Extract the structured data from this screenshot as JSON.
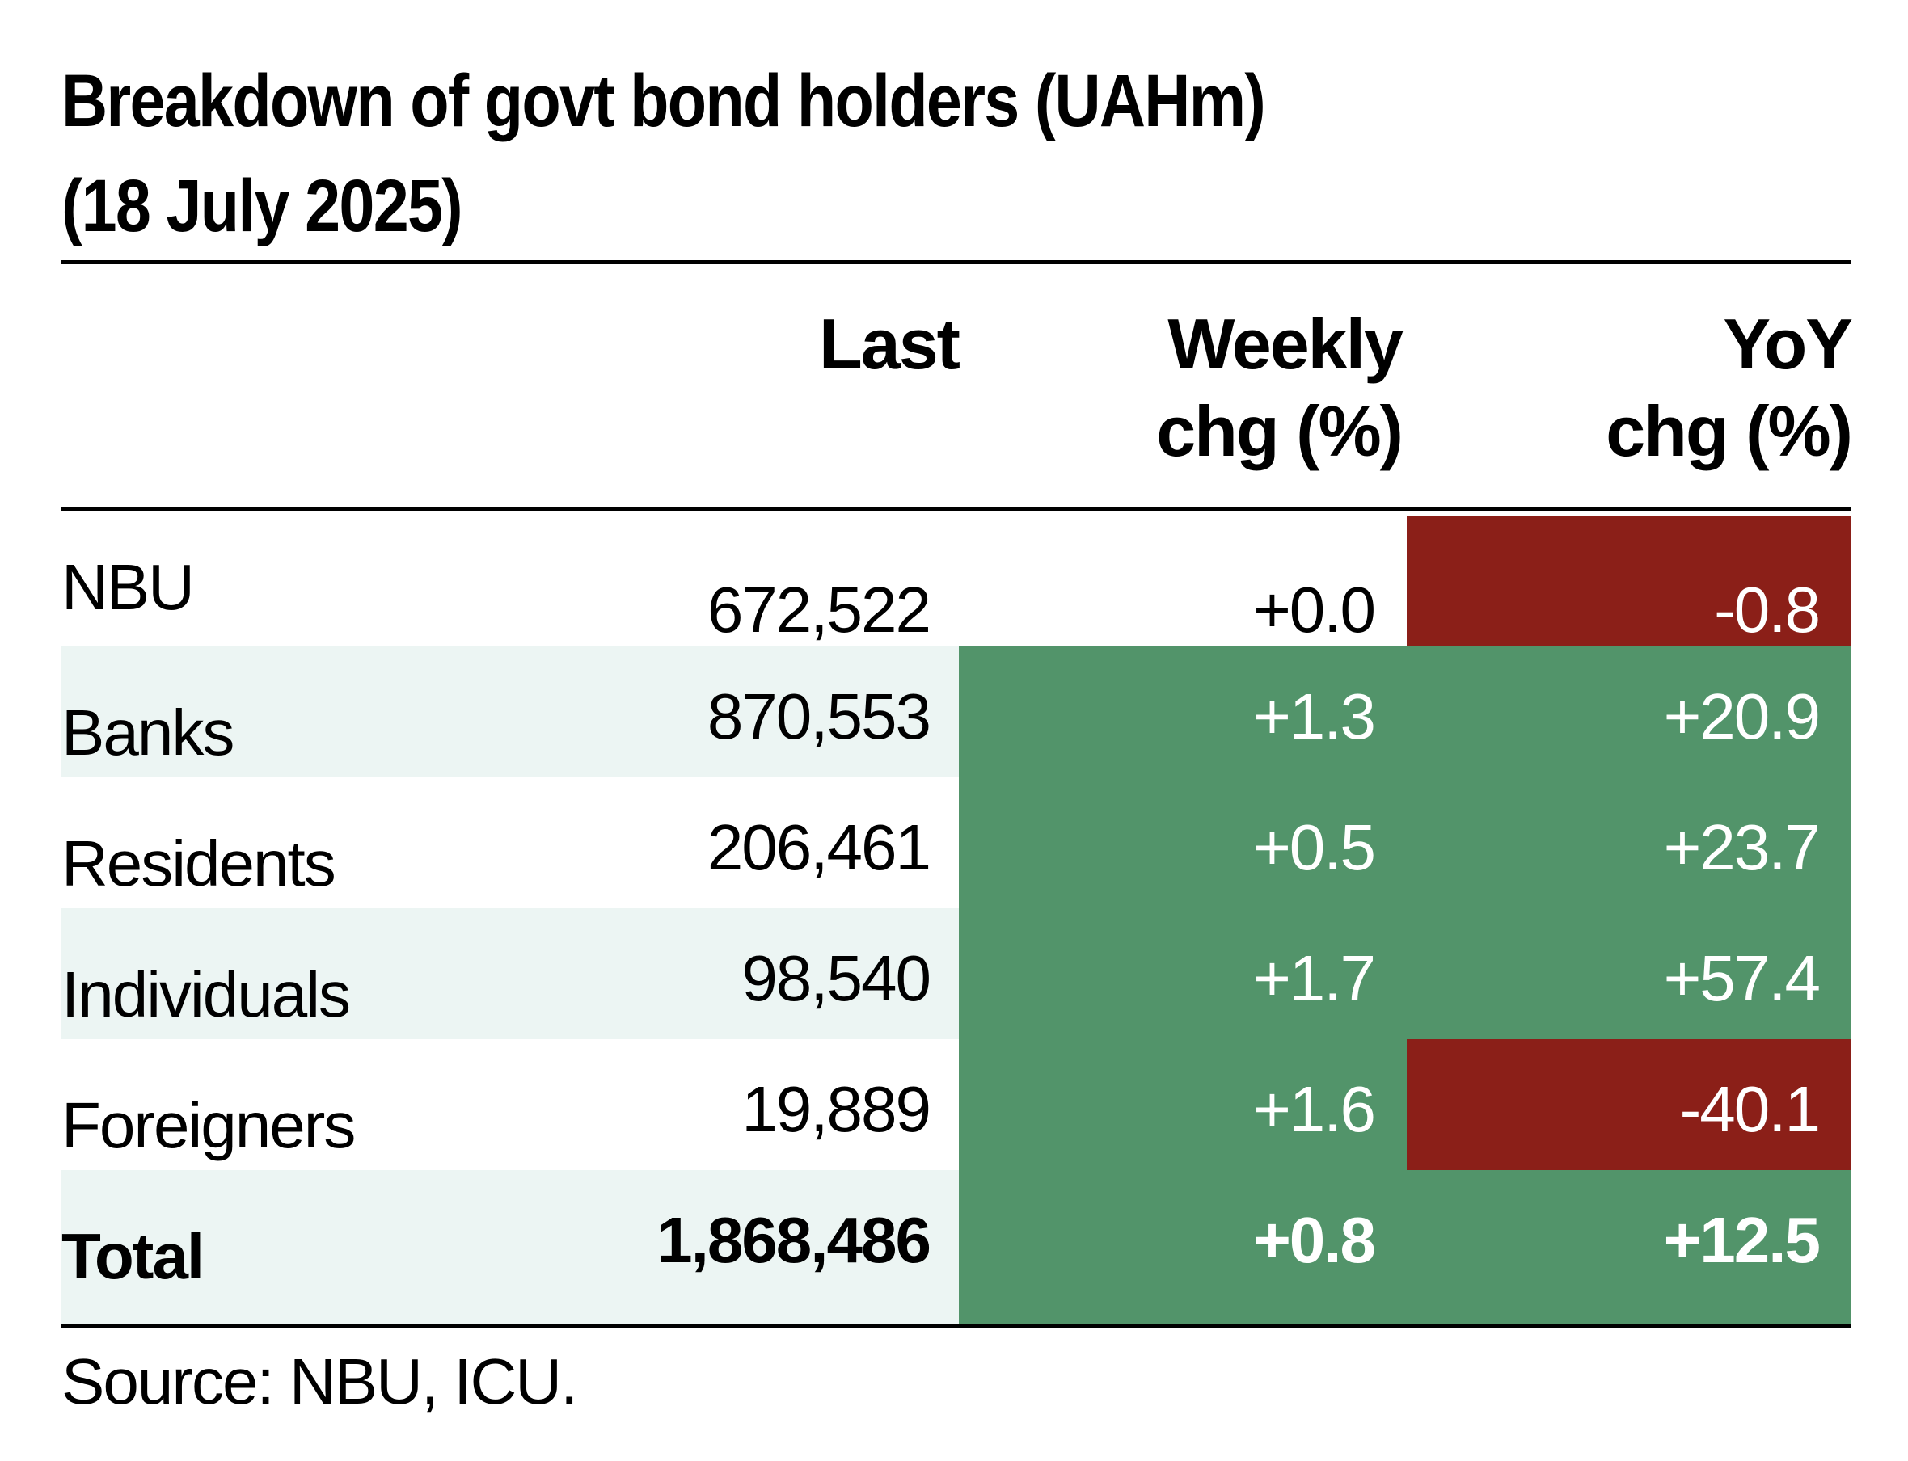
{
  "title": {
    "line1": "Breakdown of govt bond holders (UAHm)",
    "line2": "(18 July 2025)"
  },
  "columns": {
    "last": "Last",
    "weekly_line1": "Weekly",
    "weekly_line2": "chg (%)",
    "yoy_line1": "YoY",
    "yoy_line2": "chg (%)"
  },
  "rows": [
    {
      "label": "NBU",
      "last": "672,522",
      "weekly": "+0.0",
      "yoy": "-0.8"
    },
    {
      "label": "Banks",
      "last": "870,553",
      "weekly": "+1.3",
      "yoy": "+20.9"
    },
    {
      "label": "Residents",
      "last": "206,461",
      "weekly": "+0.5",
      "yoy": "+23.7"
    },
    {
      "label": "Individuals",
      "last": "98,540",
      "weekly": "+1.7",
      "yoy": "+57.4"
    },
    {
      "label": "Foreigners",
      "last": "19,889",
      "weekly": "+1.6",
      "yoy": "-40.1"
    },
    {
      "label": "Total",
      "last": "1,868,486",
      "weekly": "+0.8",
      "yoy": "+12.5"
    }
  ],
  "source": "Source: NBU, ICU.",
  "colors": {
    "positive": "#52946a",
    "negative": "#8b1f18",
    "row_shade": "#ecf5f3"
  }
}
